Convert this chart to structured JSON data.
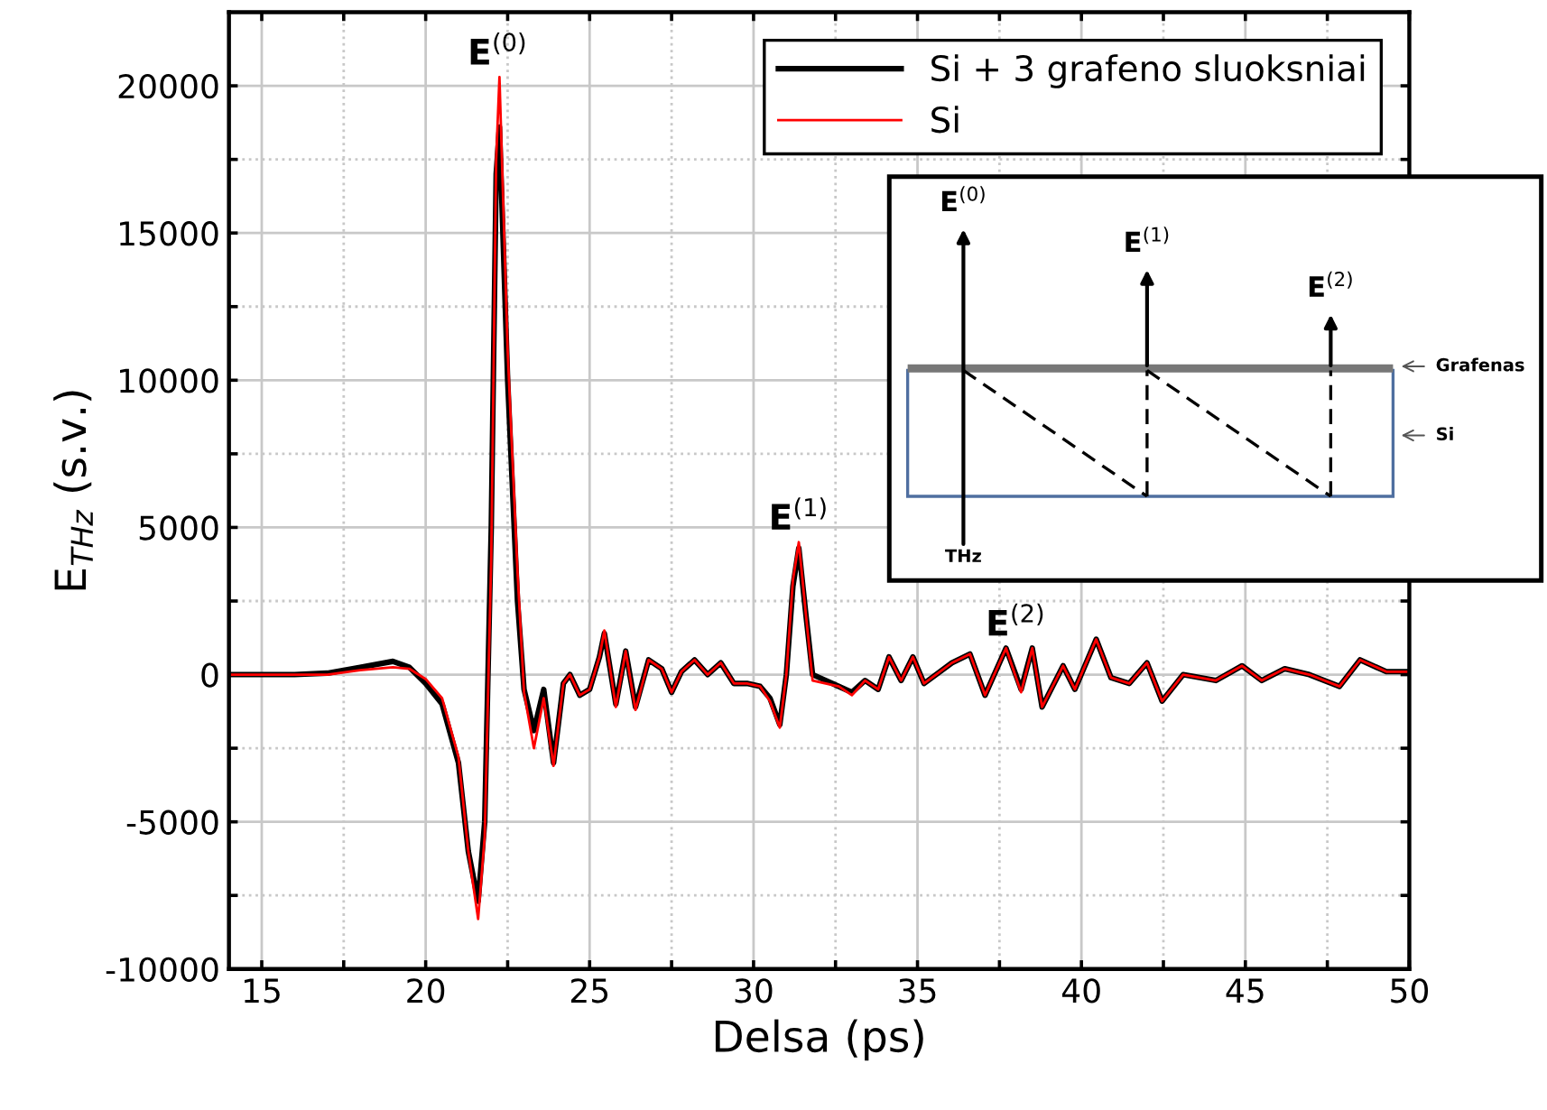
{
  "chart_data": {
    "type": "line",
    "xlabel": "Delsa (ps)",
    "ylabel": "E$_{THz}$ (s.v.)",
    "xlim": [
      14,
      50
    ],
    "ylim": [
      -10000,
      22500
    ],
    "xticks": [
      15,
      {
        "value": 17.5,
        "label": null
      },
      20,
      {
        "value": 22.5,
        "label": null
      },
      25,
      {
        "value": 27.5,
        "label": null
      },
      30,
      {
        "value": 32.5,
        "label": null
      },
      35,
      {
        "value": 37.5,
        "label": null
      },
      40,
      {
        "value": 42.5,
        "label": null
      },
      45,
      {
        "value": 47.5,
        "label": null
      },
      50
    ],
    "yticks": [
      -10000,
      {
        "value": -7500,
        "label": null
      },
      -5000,
      {
        "value": -2500,
        "label": null
      },
      0,
      {
        "value": 2500,
        "label": null
      },
      5000,
      {
        "value": 7500,
        "label": null
      },
      10000,
      {
        "value": 12500,
        "label": null
      },
      15000,
      {
        "value": 17500,
        "label": null
      },
      20000
    ],
    "grid": true,
    "legend": "top right",
    "marker": "none",
    "line_style": "solid",
    "x": [
      14,
      16,
      17,
      18,
      19,
      19.5,
      20,
      20.5,
      21,
      21.3,
      21.6,
      21.8,
      22.0,
      22.15,
      22.25,
      22.5,
      22.8,
      23.0,
      23.3,
      23.6,
      23.9,
      24.2,
      24.4,
      24.7,
      25.0,
      25.3,
      25.45,
      25.8,
      26.1,
      26.4,
      26.8,
      27.2,
      27.5,
      27.8,
      28.2,
      28.6,
      29.0,
      29.4,
      29.8,
      30.2,
      30.5,
      30.8,
      31.0,
      31.2,
      31.38,
      31.6,
      31.8,
      32.2,
      32.6,
      33.0,
      33.4,
      33.8,
      34.13,
      34.5,
      34.86,
      35.2,
      36.05,
      36.6,
      37.06,
      37.7,
      38.16,
      38.5,
      38.8,
      39.44,
      39.8,
      40.45,
      40.9,
      41.46,
      42.0,
      42.46,
      43.1,
      44.1,
      44.9,
      45.5,
      46.2,
      46.95,
      47.87,
      48.5,
      49.3,
      50
    ],
    "series": [
      {
        "name": "Si + 3 grafeno sluoksniai",
        "color": "#000000",
        "values": [
          0,
          0,
          50,
          250,
          450,
          250,
          -300,
          -1000,
          -3000,
          -6000,
          -7700,
          -5000,
          5000,
          17000,
          18600,
          10000,
          2500,
          -500,
          -1900,
          -500,
          -3000,
          -300,
          0,
          -700,
          -500,
          600,
          1400,
          -1000,
          800,
          -1100,
          500,
          200,
          -600,
          100,
          500,
          0,
          400,
          -300,
          -300,
          -400,
          -800,
          -1700,
          0,
          3000,
          4300,
          2000,
          0,
          -200,
          -400,
          -600,
          -200,
          -500,
          600,
          -200,
          600,
          -300,
          400,
          700,
          -700,
          900,
          -500,
          900,
          -1100,
          300,
          -500,
          1200,
          -100,
          -300,
          400,
          -900,
          0,
          -200,
          300,
          -200,
          200,
          0,
          -400,
          500,
          100,
          100
        ]
      },
      {
        "name": "Si",
        "color": "#ff0000",
        "values": [
          0,
          0,
          0,
          150,
          250,
          200,
          -150,
          -800,
          -2800,
          -6000,
          -8300,
          -5500,
          4000,
          17500,
          20300,
          11000,
          3500,
          -600,
          -2500,
          -800,
          -3100,
          -300,
          0,
          -700,
          -500,
          600,
          1500,
          -1100,
          800,
          -1200,
          500,
          200,
          -600,
          100,
          500,
          0,
          400,
          -300,
          -300,
          -400,
          -900,
          -1800,
          0,
          3200,
          4500,
          2000,
          -200,
          -300,
          -400,
          -700,
          -200,
          -500,
          600,
          -200,
          600,
          -300,
          400,
          700,
          -700,
          900,
          -600,
          900,
          -1100,
          300,
          -500,
          1200,
          -100,
          -300,
          400,
          -900,
          0,
          -200,
          300,
          -200,
          200,
          0,
          -400,
          500,
          100,
          100
        ]
      }
    ],
    "annotations": [
      {
        "text": "E$^{(0)}$",
        "x": 22.2,
        "y": 20300
      },
      {
        "text": "E$^{(1)}$",
        "x": 31.38,
        "y": 4500
      },
      {
        "text": "E$^{(2)}$",
        "x": 38.0,
        "y": 900
      },
      "E$^{(0)}$",
      "E$^{(1)}$",
      "E$^{(2)}$",
      "Grafenas",
      "Si",
      "THz"
    ]
  }
}
